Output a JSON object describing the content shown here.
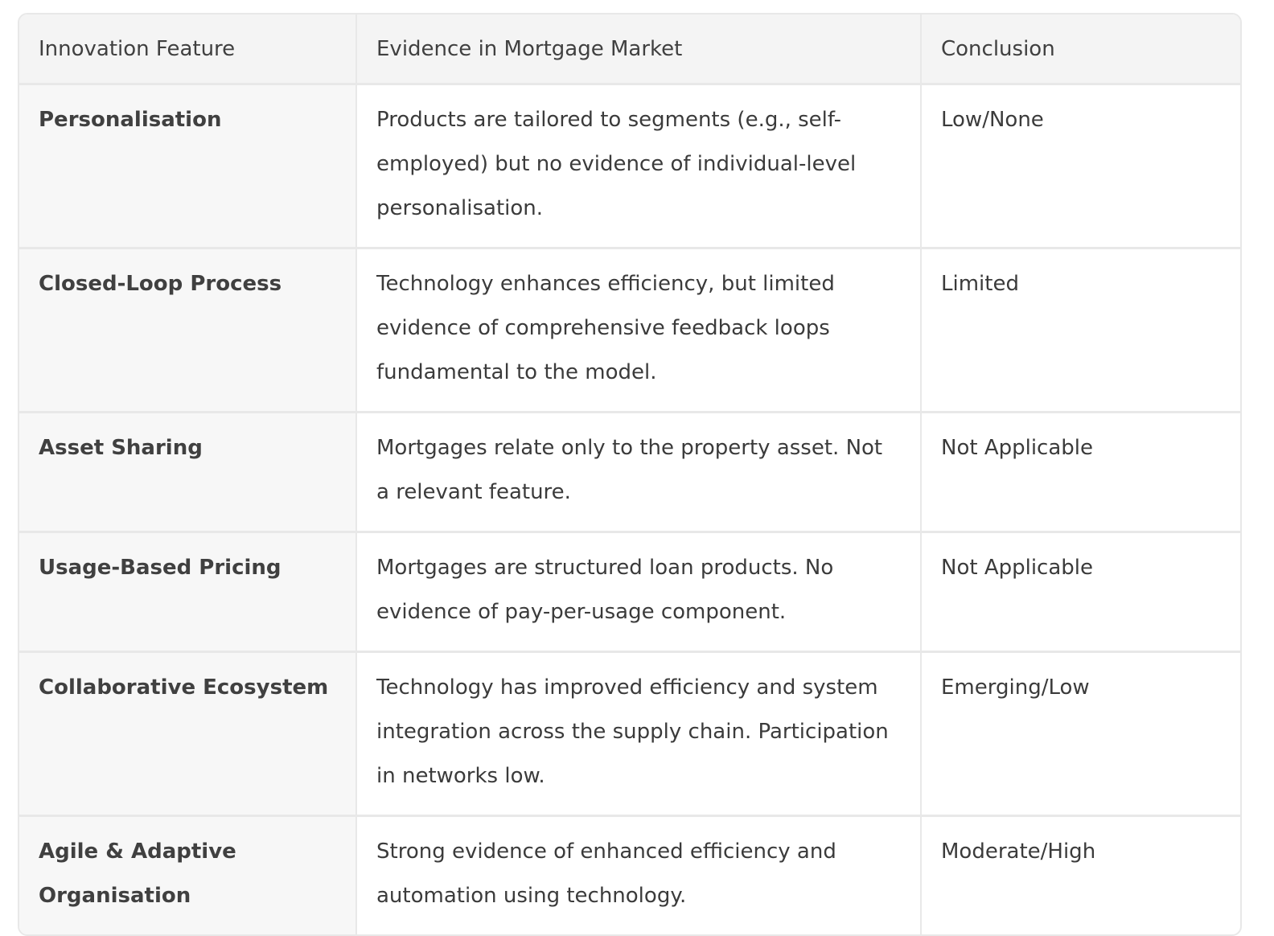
{
  "table": {
    "headers": [
      "Innovation Feature",
      "Evidence in Mortgage Market",
      "Conclusion"
    ],
    "rows": [
      {
        "feature": "Personalisation",
        "evidence": "Products are tailored to segments (e.g., self-employed) but no evidence of individual-level personalisation.",
        "conclusion": "Low/None"
      },
      {
        "feature": "Closed-Loop Process",
        "evidence": "Technology enhances efficiency, but limited evidence of comprehensive feedback loops fundamental to the model.",
        "conclusion": "Limited"
      },
      {
        "feature": "Asset Sharing",
        "evidence": "Mortgages relate only to the property asset. Not a relevant feature.",
        "conclusion": "Not Applicable"
      },
      {
        "feature": "Usage-Based Pricing",
        "evidence": "Mortgages are structured loan products. No evidence of pay-per-usage component.",
        "conclusion": "Not Applicable"
      },
      {
        "feature": "Collaborative Ecosystem",
        "evidence": "Technology has improved efficiency and system integration across the supply chain. Participation in networks low.",
        "conclusion": "Emerging/Low"
      },
      {
        "feature": "Agile & Adaptive Organisation",
        "evidence": "Strong evidence of enhanced efficiency and automation using technology.",
        "conclusion": "Moderate/High"
      }
    ]
  }
}
